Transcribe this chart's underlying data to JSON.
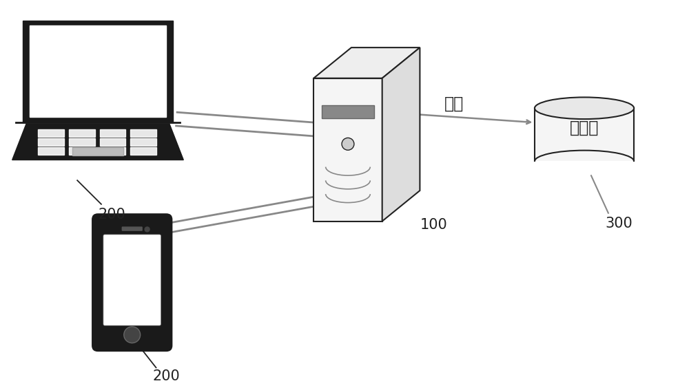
{
  "bg_color": "#ffffff",
  "label_100": "100",
  "label_200_top": "200",
  "label_200_bottom": "200",
  "label_300": "300",
  "label_data": "数据",
  "label_storage": "存储器",
  "line_color": "#888888",
  "icon_outline_color": "#222222",
  "icon_fill_dark": "#1a1a1a",
  "icon_fill_light": "#f5f5f5",
  "icon_fill_mid": "#dddddd",
  "label_fontsize": 15,
  "chinese_fontsize": 17
}
